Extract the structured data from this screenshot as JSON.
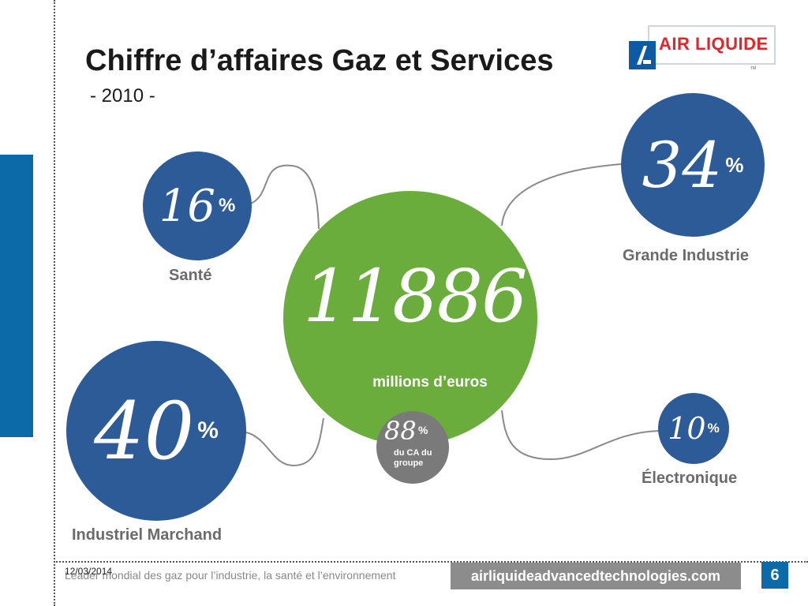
{
  "title": "Chiffre d’affaires Gaz et Services",
  "subtitle": "- 2010 -",
  "logo": {
    "text": "AIR LIQUIDE",
    "tm": "TM"
  },
  "center": {
    "value": "11886",
    "caption": "millions d’euros"
  },
  "share": {
    "value": "88",
    "sign": "%",
    "caption": "du CA du groupe"
  },
  "segments": {
    "sante": {
      "value": "16",
      "sign": "%",
      "label": "Santé"
    },
    "grande_industrie": {
      "value": "34",
      "sign": "%",
      "label": "Grande Industrie"
    },
    "industriel_marchand": {
      "value": "40",
      "sign": "%",
      "label": "Industriel Marchand"
    },
    "electronique": {
      "value": "10",
      "sign": "%",
      "label": "Électronique"
    }
  },
  "colors": {
    "blue": "#2c5b98",
    "green": "#6aad3d",
    "grey": "#7a7a7a",
    "brand_red": "#e0252b",
    "band": "#0d6aa8"
  },
  "footer": {
    "date": "12/03/2014",
    "text": "Leader mondial des gaz pour l’industrie, la santé et l’environnement",
    "url": "airliquideadvancedtechnologies.com",
    "page": "6"
  }
}
